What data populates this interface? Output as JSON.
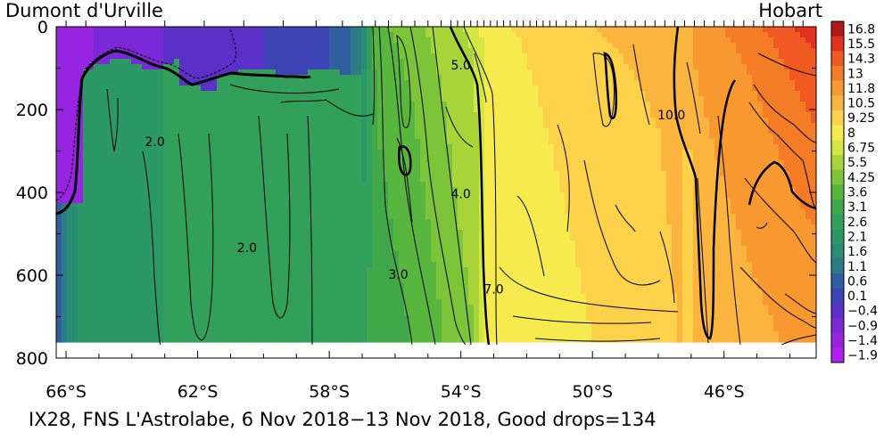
{
  "chart_data": {
    "type": "heatmap",
    "title_left": "Dumont d'Urville",
    "title_right": "Hobart",
    "caption": "IX28, FNS L'Astrolabe,  6 Nov 2018−13 Nov 2018, Good drops=134",
    "x_axis": {
      "units": "degrees latitude",
      "range_south": [
        66.3,
        43.2
      ],
      "ticks": [
        {
          "value": 66,
          "label": "66°S"
        },
        {
          "value": 62,
          "label": "62°S"
        },
        {
          "value": 58,
          "label": "58°S"
        },
        {
          "value": 54,
          "label": "54°S"
        },
        {
          "value": 50,
          "label": "50°S"
        },
        {
          "value": 46,
          "label": "46°S"
        }
      ],
      "minor_ticks": [
        65,
        64,
        63,
        61,
        60,
        59,
        57,
        56,
        55,
        53,
        52,
        51,
        49,
        48,
        47,
        45,
        44
      ]
    },
    "y_axis": {
      "units": "depth (m)",
      "range": [
        0,
        800
      ],
      "inverted": true,
      "ticks": [
        0,
        200,
        400,
        600,
        800
      ]
    },
    "data_depth_max": 760,
    "colorbar": {
      "labels": [
        "16.8",
        "15.5",
        "14.3",
        "13",
        "11.8",
        "10.5",
        "9.25",
        "8",
        "6.75",
        "5.5",
        "4.25",
        "3.6",
        "3.1",
        "2.6",
        "2.1",
        "1.6",
        "1.1",
        "0.6",
        "0.1",
        "−0.4",
        "−0.9",
        "−1.4",
        "−1.9"
      ],
      "colors": [
        "#b01818",
        "#e0321c",
        "#f05a22",
        "#f47c26",
        "#f89830",
        "#fbb43e",
        "#fdd24a",
        "#f6ea4e",
        "#d4e642",
        "#a8d63a",
        "#7cc43a",
        "#58b63e",
        "#40a84a",
        "#32a05a",
        "#2c9866",
        "#2a8c74",
        "#2c7c86",
        "#305e9e",
        "#3c44b4",
        "#5a30c8",
        "#7a28d8",
        "#9624e0",
        "#b020f0"
      ]
    },
    "station_ticks": [
      43.6,
      43.9,
      44.2,
      44.5,
      44.8,
      45.1,
      45.4,
      45.7,
      46.0,
      46.3,
      46.6,
      46.9,
      47.2,
      47.5,
      47.8,
      48.1,
      48.4,
      48.7,
      49.0,
      49.3,
      49.6,
      49.9,
      50.2,
      50.5,
      50.8,
      51.1,
      51.3,
      51.5,
      51.7,
      51.9,
      52.1,
      52.3,
      52.5,
      52.7,
      52.9,
      53.1,
      53.3,
      53.5,
      53.7,
      53.9,
      54.1,
      54.3,
      54.6,
      55.0,
      55.4,
      55.8,
      56.2,
      56.6,
      57.0,
      57.6,
      58.4,
      59.4,
      60.6,
      61.8,
      63.0,
      64.2,
      65.4,
      66.0
    ],
    "contour_labels": [
      {
        "text": "2.0",
        "lat": 63.3,
        "depth": 280
      },
      {
        "text": "2.0",
        "lat": 60.5,
        "depth": 535
      },
      {
        "text": "3.0",
        "lat": 55.9,
        "depth": 600
      },
      {
        "text": "4.0",
        "lat": 54.0,
        "depth": 405
      },
      {
        "text": "5.0",
        "lat": 54.0,
        "depth": 95
      },
      {
        "text": "7.0",
        "lat": 53.0,
        "depth": 635
      },
      {
        "text": "10.0",
        "lat": 47.6,
        "depth": 215
      }
    ],
    "temperature_profile": [
      {
        "lat": 66.3,
        "surface": -1.9,
        "deep": 0.1
      },
      {
        "lat": 65.6,
        "surface": -1.6,
        "deep": 1.9
      },
      {
        "lat": 65.0,
        "surface": -1.3,
        "deep": 2.0
      },
      {
        "lat": 63.0,
        "surface": -0.9,
        "deep": 2.1
      },
      {
        "lat": 60.0,
        "surface": -0.4,
        "deep": 2.2
      },
      {
        "lat": 58.0,
        "surface": 0.1,
        "deep": 2.3
      },
      {
        "lat": 57.0,
        "surface": 0.8,
        "deep": 2.5
      },
      {
        "lat": 56.6,
        "surface": 3.4,
        "deep": 2.8
      },
      {
        "lat": 55.5,
        "surface": 4.0,
        "deep": 3.1
      },
      {
        "lat": 54.5,
        "surface": 4.8,
        "deep": 3.6
      },
      {
        "lat": 53.6,
        "surface": 6.0,
        "deep": 4.2
      },
      {
        "lat": 53.2,
        "surface": 7.6,
        "deep": 6.8
      },
      {
        "lat": 51.5,
        "surface": 8.6,
        "deep": 7.4
      },
      {
        "lat": 50.0,
        "surface": 9.3,
        "deep": 8.0
      },
      {
        "lat": 48.0,
        "surface": 10.0,
        "deep": 8.6
      },
      {
        "lat": 47.2,
        "surface": 10.5,
        "deep": 9.5
      },
      {
        "lat": 46.5,
        "surface": 11.5,
        "deep": 9.6
      },
      {
        "lat": 45.0,
        "surface": 13.0,
        "deep": 10.2
      },
      {
        "lat": 44.0,
        "surface": 14.3,
        "deep": 10.6
      },
      {
        "lat": 43.2,
        "surface": 15.5,
        "deep": 10.8
      }
    ]
  }
}
